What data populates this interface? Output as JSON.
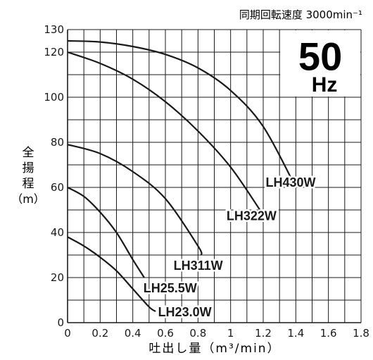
{
  "chart_data": {
    "type": "line",
    "title": "同期回転速度 3000min⁻¹",
    "frequency": {
      "value": "50",
      "unit": "Hz"
    },
    "xlabel": "吐出し量（m³/min）",
    "ylabel": [
      "全",
      "揚",
      "程",
      "（m）"
    ],
    "xlim": [
      0,
      1.8
    ],
    "ylim": [
      0,
      130
    ],
    "x_ticks": [
      0,
      0.2,
      0.4,
      0.6,
      0.8,
      1,
      1.2,
      1.4,
      1.6,
      1.8
    ],
    "x_tick_labels": [
      "0",
      "0.2",
      "0.4",
      "0.6",
      "0.8",
      "1",
      "1.2",
      "1.4",
      "1.6",
      "1.8"
    ],
    "y_ticks": [
      0,
      20,
      40,
      60,
      80,
      100,
      120,
      130
    ],
    "y_tick_labels": [
      "0",
      "20",
      "40",
      "60",
      "80",
      "100",
      "120",
      "130"
    ],
    "grid": true,
    "series": [
      {
        "name": "LH430W",
        "x": [
          0,
          0.2,
          0.4,
          0.6,
          0.8,
          1.0,
          1.2,
          1.4
        ],
        "y": [
          125,
          124.5,
          122.5,
          119,
          113,
          103,
          87,
          60
        ]
      },
      {
        "name": "LH322W",
        "x": [
          0,
          0.2,
          0.4,
          0.6,
          0.8,
          1.0,
          1.18
        ],
        "y": [
          120,
          115,
          108,
          98,
          85,
          69,
          50
        ]
      },
      {
        "name": "LH311W",
        "x": [
          0,
          0.2,
          0.4,
          0.6,
          0.8,
          0.82
        ],
        "y": [
          79,
          75,
          67,
          55,
          34,
          30
        ]
      },
      {
        "name": "LH25.5W",
        "x": [
          0,
          0.1,
          0.2,
          0.3,
          0.4,
          0.47
        ],
        "y": [
          60,
          56,
          49,
          40,
          28,
          20
        ]
      },
      {
        "name": "LH23.0W",
        "x": [
          0,
          0.1,
          0.2,
          0.3,
          0.4,
          0.5,
          0.54
        ],
        "y": [
          38,
          34,
          29,
          23,
          15,
          7,
          5
        ]
      }
    ]
  }
}
